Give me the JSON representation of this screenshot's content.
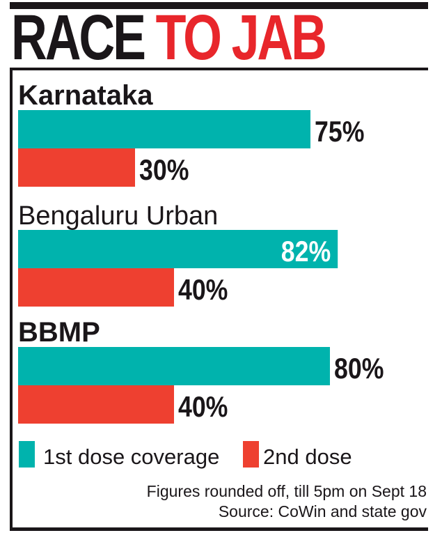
{
  "chart_data": {
    "type": "bar",
    "orientation": "horizontal",
    "title": "RACE TO JAB",
    "title_parts": [
      "RACE",
      "TO JAB"
    ],
    "categories": [
      "Karnataka",
      "Bengaluru Urban",
      "BBMP"
    ],
    "series": [
      {
        "name": "1st dose coverage",
        "color": "#00b3ad",
        "values": [
          75,
          82,
          80
        ],
        "labels": [
          "75%",
          "82%",
          "80%"
        ]
      },
      {
        "name": "2nd dose",
        "color": "#ee4030",
        "values": [
          30,
          40,
          40
        ],
        "labels": [
          "30%",
          "40%",
          "40%"
        ]
      }
    ],
    "xlim": [
      0,
      100
    ],
    "xlabel": "",
    "ylabel": "",
    "grid": false,
    "legend": "bottom",
    "unit": "%"
  },
  "colors": {
    "title_dark": "#1a1619",
    "title_red": "#e8262b"
  },
  "footer": {
    "note": "Figures rounded off, till 5pm on Sept 18",
    "source": "Source: CoWin and state gov"
  }
}
